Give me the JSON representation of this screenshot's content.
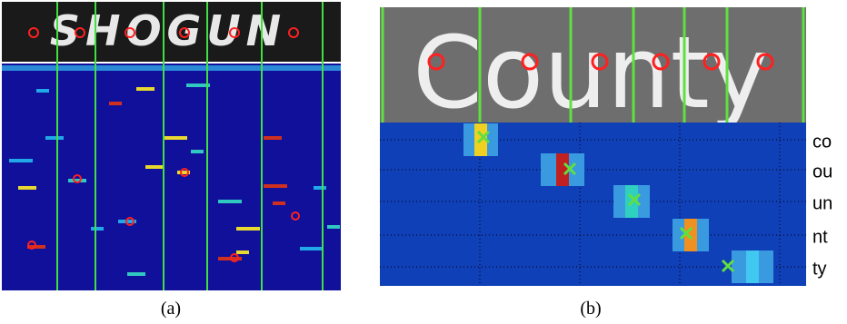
{
  "panels": [
    {
      "image_text": "SHOGUN",
      "caption": "(a)"
    },
    {
      "image_text": "County",
      "row_labels": [
        "co",
        "ou",
        "un",
        "nt",
        "ty"
      ],
      "caption": "(b)"
    }
  ]
}
